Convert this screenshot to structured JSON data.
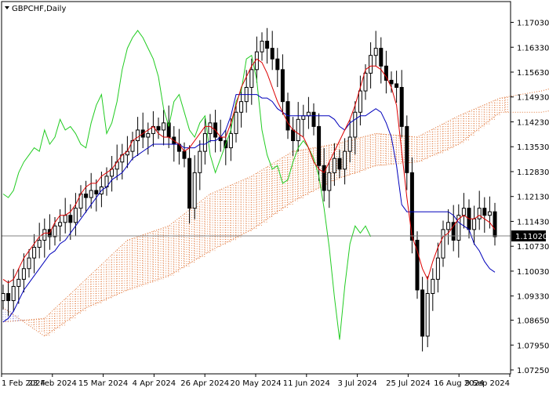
{
  "chart_data": {
    "type": "candlestick",
    "symbol_label": "GBPCHF,Daily",
    "current_price": "1.11020",
    "ylim": [
      1.0725,
      1.1735
    ],
    "y_ticks": [
      "1.17030",
      "1.16330",
      "1.15630",
      "1.14930",
      "1.14230",
      "1.13530",
      "1.12830",
      "1.12130",
      "1.11430",
      "1.10730",
      "1.10030",
      "1.09330",
      "1.08650",
      "1.07950",
      "1.07250"
    ],
    "x_ticks": [
      "1 Feb 2024",
      "23 Feb 2024",
      "15 Mar 2024",
      "4 Apr 2024",
      "26 Apr 2024",
      "20 May 2024",
      "11 Jun 2024",
      "3 Jul 2024",
      "25 Jul 2024",
      "16 Aug 2024",
      "9 Sep 2024"
    ],
    "colors": {
      "tenkan": "#dd0000",
      "kijun": "#0000bb",
      "chikou": "#22cc22",
      "cloud": "#e07030",
      "cloud_bear": "#7a70c8",
      "candle": "#000000",
      "price_line": "#808080"
    },
    "series": {
      "close": [
        1.094,
        1.092,
        1.096,
        1.098,
        1.101,
        1.104,
        1.107,
        1.109,
        1.112,
        1.11,
        1.113,
        1.114,
        1.116,
        1.114,
        1.118,
        1.122,
        1.121,
        1.123,
        1.122,
        1.124,
        1.127,
        1.129,
        1.131,
        1.133,
        1.134,
        1.137,
        1.14,
        1.138,
        1.139,
        1.141,
        1.14,
        1.142,
        1.138,
        1.136,
        1.134,
        1.132,
        1.118,
        1.128,
        1.134,
        1.139,
        1.142,
        1.138,
        1.137,
        1.135,
        1.139,
        1.145,
        1.148,
        1.152,
        1.157,
        1.162,
        1.165,
        1.163,
        1.16,
        1.157,
        1.148,
        1.14,
        1.137,
        1.143,
        1.144,
        1.145,
        1.141,
        1.13,
        1.123,
        1.128,
        1.132,
        1.129,
        1.134,
        1.138,
        1.145,
        1.151,
        1.156,
        1.161,
        1.163,
        1.158,
        1.154,
        1.153,
        1.152,
        1.141,
        1.128,
        1.109,
        1.095,
        1.082,
        1.094,
        1.098,
        1.104,
        1.112,
        1.114,
        1.109,
        1.116,
        1.118,
        1.112,
        1.115,
        1.118,
        1.116,
        1.117,
        1.11
      ],
      "tenkan": [
        1.098,
        1.097,
        1.098,
        1.101,
        1.104,
        1.106,
        1.108,
        1.11,
        1.111,
        1.111,
        1.114,
        1.116,
        1.116,
        1.117,
        1.119,
        1.122,
        1.124,
        1.125,
        1.125,
        1.127,
        1.128,
        1.129,
        1.131,
        1.133,
        1.134,
        1.137,
        1.138,
        1.139,
        1.14,
        1.141,
        1.139,
        1.138,
        1.138,
        1.137,
        1.136,
        1.134,
        1.135,
        1.137,
        1.139,
        1.141,
        1.141,
        1.14,
        1.138,
        1.138,
        1.142,
        1.147,
        1.152,
        1.155,
        1.158,
        1.16,
        1.159,
        1.156,
        1.152,
        1.148,
        1.145,
        1.142,
        1.14,
        1.139,
        1.138,
        1.135,
        1.131,
        1.129,
        1.128,
        1.131,
        1.134,
        1.137,
        1.14,
        1.143,
        1.147,
        1.152,
        1.157,
        1.158,
        1.158,
        1.157,
        1.155,
        1.152,
        1.147,
        1.134,
        1.121,
        1.11,
        1.106,
        1.101,
        1.098,
        1.103,
        1.107,
        1.11,
        1.111,
        1.113,
        1.115,
        1.116,
        1.115,
        1.115,
        1.116,
        1.115,
        1.114,
        1.112
      ],
      "kijun": [
        1.086,
        1.087,
        1.089,
        1.092,
        1.095,
        1.097,
        1.099,
        1.101,
        1.103,
        1.105,
        1.106,
        1.108,
        1.109,
        1.111,
        1.113,
        1.115,
        1.117,
        1.119,
        1.121,
        1.123,
        1.124,
        1.126,
        1.127,
        1.128,
        1.13,
        1.132,
        1.133,
        1.134,
        1.135,
        1.136,
        1.136,
        1.136,
        1.136,
        1.136,
        1.136,
        1.135,
        1.135,
        1.135,
        1.136,
        1.136,
        1.137,
        1.137,
        1.138,
        1.14,
        1.144,
        1.15,
        1.15,
        1.15,
        1.15,
        1.15,
        1.149,
        1.149,
        1.148,
        1.146,
        1.145,
        1.144,
        1.144,
        1.144,
        1.144,
        1.144,
        1.144,
        1.144,
        1.144,
        1.144,
        1.143,
        1.141,
        1.14,
        1.142,
        1.143,
        1.144,
        1.144,
        1.145,
        1.146,
        1.145,
        1.142,
        1.138,
        1.13,
        1.119,
        1.117,
        1.117,
        1.117,
        1.117,
        1.117,
        1.117,
        1.117,
        1.117,
        1.117,
        1.116,
        1.114,
        1.113,
        1.112,
        1.108,
        1.106,
        1.103,
        1.101,
        1.1
      ],
      "chikou_x_index": [
        0,
        1,
        2,
        3,
        4,
        5,
        6,
        7,
        8,
        9,
        10,
        11,
        12,
        13,
        14,
        15,
        16,
        17,
        18,
        19,
        20,
        21,
        22,
        23,
        24,
        25,
        26,
        27,
        28,
        29,
        30,
        31,
        32,
        33,
        34,
        35,
        36,
        37,
        38,
        39,
        40,
        41,
        42,
        43,
        44,
        45,
        46,
        47,
        48,
        49,
        50,
        51,
        52,
        53,
        54,
        55,
        56,
        57,
        58,
        59,
        60,
        61,
        62,
        63,
        64,
        65,
        66,
        67,
        68,
        69,
        70,
        71
      ],
      "chikou": [
        1.122,
        1.121,
        1.123,
        1.128,
        1.131,
        1.133,
        1.135,
        1.134,
        1.14,
        1.136,
        1.138,
        1.143,
        1.14,
        1.141,
        1.139,
        1.136,
        1.135,
        1.142,
        1.147,
        1.15,
        1.139,
        1.142,
        1.148,
        1.157,
        1.163,
        1.166,
        1.168,
        1.166,
        1.163,
        1.16,
        1.155,
        1.146,
        1.141,
        1.148,
        1.15,
        1.145,
        1.14,
        1.138,
        1.142,
        1.144,
        1.133,
        1.128,
        1.132,
        1.136,
        1.14,
        1.148,
        1.151,
        1.16,
        1.161,
        1.154,
        1.14,
        1.133,
        1.129,
        1.13,
        1.125,
        1.126,
        1.131,
        1.135,
        1.137,
        1.135,
        1.132,
        1.127,
        1.118,
        1.107,
        1.093,
        1.081,
        1.096,
        1.108,
        1.113,
        1.111,
        1.113,
        1.11
      ],
      "span_a_x_index": [
        0,
        8,
        16,
        24,
        32,
        40,
        48,
        56,
        64,
        72,
        80,
        88,
        96,
        104,
        112,
        120,
        126
      ],
      "span_a": [
        1.086,
        1.087,
        1.098,
        1.109,
        1.113,
        1.122,
        1.127,
        1.134,
        1.136,
        1.139,
        1.138,
        1.144,
        1.149,
        1.151,
        1.154,
        1.147,
        1.133
      ],
      "span_b": [
        1.09,
        1.082,
        1.09,
        1.095,
        1.099,
        1.106,
        1.112,
        1.12,
        1.126,
        1.13,
        1.131,
        1.136,
        1.145,
        1.145,
        1.147,
        1.148,
        1.149
      ]
    }
  }
}
